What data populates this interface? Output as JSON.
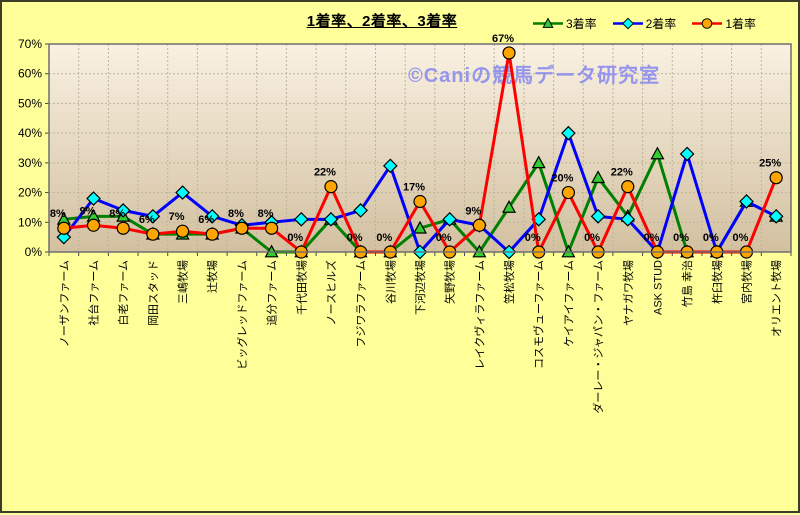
{
  "chart_data": {
    "type": "line",
    "title": "1着率、2着率、3着率",
    "watermark": "©Caniの競馬データ研究室",
    "legend_position": "top-right",
    "grid": true,
    "ylim": [
      0,
      70
    ],
    "ytick_step": 10,
    "y_tick_labels": [
      "0%",
      "10%",
      "20%",
      "30%",
      "40%",
      "50%",
      "60%",
      "70%"
    ],
    "categories": [
      "ノーザンファーム",
      "社台ファーム",
      "白老ファーム",
      "岡田スタッド",
      "三嶋牧場",
      "辻牧場",
      "ビッグレッドファーム",
      "追分ファーム",
      "千代田牧場",
      "ノースヒルズ",
      "フジワラファーム",
      "谷川牧場",
      "下河辺牧場",
      "矢野牧場",
      "レイクヴィラファーム",
      "笠松牧場",
      "コスモヴューファーム",
      "ケイアイファーム",
      "ダーレー・ジャパン・ファーム",
      "ヤナガワ牧場",
      "ASK STUD",
      "竹島 幸治",
      "杵臼牧場",
      "宮内牧場",
      "オリエント牧場"
    ],
    "series": [
      {
        "name": "3着率",
        "line_color": "#008000",
        "marker": "triangle",
        "marker_color": "#33CC33",
        "show_labels": false,
        "values": [
          11,
          12,
          12,
          6,
          6,
          6,
          8,
          0,
          0,
          11,
          0,
          0,
          8,
          11,
          0,
          15,
          30,
          0,
          25,
          12,
          33,
          0,
          0,
          17,
          12
        ]
      },
      {
        "name": "2着率",
        "line_color": "#0000FF",
        "marker": "diamond",
        "marker_color": "#00FFFF",
        "show_labels": false,
        "values": [
          5,
          18,
          14,
          12,
          20,
          12,
          9,
          10,
          11,
          11,
          14,
          29,
          0,
          11,
          9,
          0,
          11,
          40,
          12,
          11,
          0,
          33,
          0,
          17,
          12
        ]
      },
      {
        "name": "1着率",
        "line_color": "#FF0000",
        "marker": "circle",
        "marker_color": "#FFA500",
        "show_labels": true,
        "values": [
          8,
          9,
          8,
          6,
          7,
          6,
          8,
          8,
          0,
          22,
          0,
          0,
          17,
          0,
          9,
          67,
          0,
          20,
          0,
          22,
          0,
          0,
          0,
          0,
          25
        ],
        "labels": [
          "8%",
          "9%",
          "8%",
          "6%",
          "7%",
          "6%",
          "8%",
          "8%",
          "0%",
          "22%",
          "0%",
          "0%",
          "17%",
          "0%",
          "9%",
          "67%",
          "0%",
          "20%",
          "0%",
          "22%",
          "0%",
          "0%",
          "0%",
          "0%",
          "25%"
        ]
      }
    ],
    "colors": {
      "background": "#FFFF99",
      "plot_top": "#FAF1E2",
      "plot_bottom": "#D2C0A0",
      "gridline": "#BDB49C",
      "plot_border": "#6E6E6E",
      "watermark": "#9595EC"
    }
  }
}
